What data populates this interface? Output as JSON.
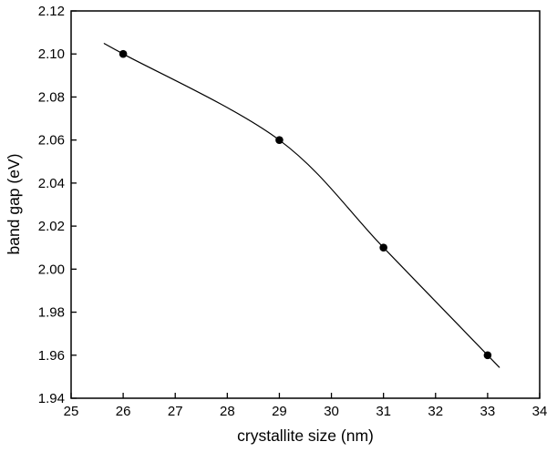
{
  "chart_data": {
    "type": "line",
    "title": "",
    "xlabel": "crystallite size (nm)",
    "ylabel": "band gap (eV)",
    "x": [
      26,
      29,
      31,
      33
    ],
    "y": [
      2.1,
      2.06,
      2.01,
      1.96
    ],
    "xlim": [
      25,
      34
    ],
    "ylim": [
      1.94,
      2.12
    ],
    "xticks": [
      25,
      26,
      27,
      28,
      29,
      30,
      31,
      32,
      33,
      34
    ],
    "xtick_labels": [
      "25",
      "26",
      "27",
      "28",
      "29",
      "30",
      "31",
      "32",
      "33",
      "34"
    ],
    "yticks": [
      1.94,
      1.96,
      1.98,
      2.0,
      2.02,
      2.04,
      2.06,
      2.08,
      2.1,
      2.12
    ],
    "ytick_labels": [
      "1.94",
      "1.96",
      "1.98",
      "2.00",
      "2.02",
      "2.04",
      "2.06",
      "2.08",
      "2.10",
      "2.12"
    ],
    "grid": false,
    "legend": "none",
    "curve": "smooth",
    "line_overshoot": {
      "left_nm": 0.35,
      "right_nm": 0.2
    },
    "marker": "filled-circle",
    "marker_color": "#000000",
    "line_color": "#000000",
    "axis_color": "#000000",
    "text_color": "#000000",
    "background": "#ffffff"
  }
}
